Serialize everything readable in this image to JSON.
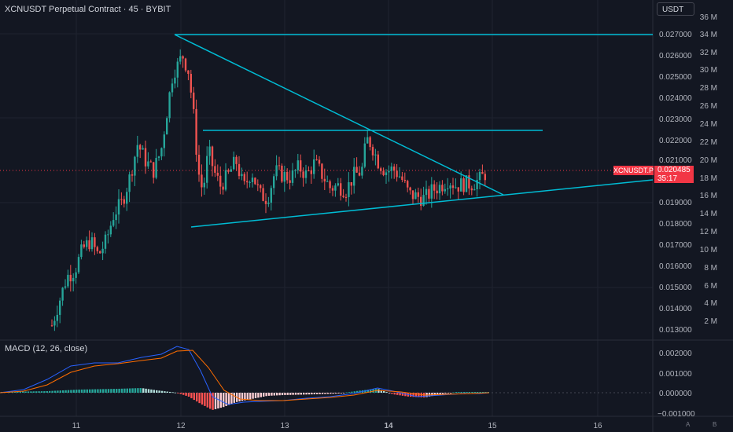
{
  "header": {
    "title": "XCNUSDT Perpetual Contract · 45 · BYBIT",
    "currency": "USDT"
  },
  "macd": {
    "title": "MACD (12, 26, close)"
  },
  "price_tag": {
    "symbol": "XCNUSDT.P",
    "price": "0.020485",
    "countdown": "35:17"
  },
  "price_axis_labels": [
    "0.027000",
    "0.026000",
    "0.025000",
    "0.024000",
    "0.023000",
    "0.022000",
    "0.021000",
    "0.019000",
    "0.018000",
    "0.017000",
    "0.016000",
    "0.015000",
    "0.014000",
    "0.013000"
  ],
  "volume_axis_labels": [
    "36 M",
    "34 M",
    "32 M",
    "30 M",
    "28 M",
    "26 M",
    "24 M",
    "22 M",
    "20 M",
    "18 M",
    "16 M",
    "14 M",
    "12 M",
    "10 M",
    "8 M",
    "6 M",
    "4 M",
    "2 M"
  ],
  "macd_axis_labels": [
    "0.002000",
    "0.001000",
    "0.000000",
    "−0.001000"
  ],
  "time_axis_labels": [
    "11",
    "12",
    "13",
    "14",
    "15",
    "16"
  ],
  "corner_buttons": [
    "A",
    "B"
  ],
  "colors": {
    "background": "#131722",
    "up": "#26a69a",
    "down": "#ef5350",
    "trendline": "#00bcd4",
    "price_tag": "#f23645",
    "macd_line": "#2962ff",
    "signal_line": "#ff6d00"
  }
}
